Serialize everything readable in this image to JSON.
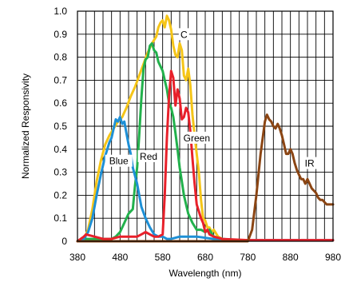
{
  "chart_data": {
    "type": "line",
    "title": "",
    "xlabel": "Wavelength (nm)",
    "ylabel": "Normalized Responsivity",
    "xlim": [
      380,
      980
    ],
    "ylim": [
      0,
      1.0
    ],
    "grid": true,
    "legend": "none",
    "xticks": [
      380,
      480,
      580,
      680,
      780,
      880,
      980
    ],
    "xtick_labels": [
      "380",
      "480",
      "580",
      "680",
      "780",
      "880",
      "980"
    ],
    "xgrid_step": 20,
    "yticks": [
      0,
      0.1,
      0.2,
      0.3,
      0.4,
      0.5,
      0.6,
      0.7,
      0.8,
      0.9,
      1.0
    ],
    "ytick_labels": [
      "0",
      "0.1",
      "0.2",
      "0.3",
      "0.4",
      "0.5",
      "0.6",
      "0.7",
      "0.8",
      "0.9",
      "1.0"
    ],
    "series": [
      {
        "name": "C",
        "color": "#f5c518",
        "x": [
          380,
          395,
          405,
          415,
          425,
          435,
          445,
          455,
          465,
          475,
          485,
          495,
          505,
          515,
          525,
          535,
          545,
          555,
          565,
          570,
          575,
          580,
          585,
          590,
          595,
          600,
          605,
          610,
          615,
          620,
          625,
          630,
          635,
          640,
          645,
          650,
          655,
          660,
          665,
          670,
          675,
          680,
          685,
          690,
          695,
          700,
          710,
          720,
          740,
          760,
          780,
          800,
          850,
          900,
          980
        ],
        "y": [
          0,
          0.01,
          0.05,
          0.14,
          0.26,
          0.35,
          0.42,
          0.46,
          0.49,
          0.52,
          0.54,
          0.58,
          0.63,
          0.67,
          0.72,
          0.77,
          0.82,
          0.86,
          0.89,
          0.93,
          0.95,
          0.96,
          0.93,
          0.98,
          0.96,
          0.92,
          0.85,
          0.81,
          0.8,
          0.86,
          0.83,
          0.72,
          0.7,
          0.75,
          0.68,
          0.55,
          0.46,
          0.38,
          0.3,
          0.18,
          0.1,
          0.09,
          0.06,
          0.06,
          0.04,
          0.05,
          0.02,
          0.01,
          0.005,
          0.005,
          0.005,
          0.005,
          0.005,
          0.005,
          0.005
        ]
      },
      {
        "name": "Green",
        "color": "#22b14c",
        "x": [
          380,
          400,
          420,
          440,
          460,
          470,
          480,
          490,
          500,
          510,
          515,
          520,
          525,
          530,
          535,
          540,
          545,
          550,
          555,
          560,
          565,
          570,
          575,
          580,
          585,
          590,
          595,
          600,
          605,
          610,
          615,
          620,
          625,
          630,
          640,
          650,
          660,
          670,
          680,
          690,
          700,
          720,
          740,
          780,
          850,
          900,
          980
        ],
        "y": [
          0,
          0.01,
          0.01,
          0.01,
          0.01,
          0.02,
          0.04,
          0.08,
          0.12,
          0.14,
          0.24,
          0.32,
          0.46,
          0.62,
          0.75,
          0.79,
          0.8,
          0.85,
          0.86,
          0.83,
          0.82,
          0.78,
          0.76,
          0.74,
          0.7,
          0.66,
          0.6,
          0.58,
          0.54,
          0.47,
          0.4,
          0.32,
          0.26,
          0.2,
          0.12,
          0.08,
          0.05,
          0.05,
          0.04,
          0.05,
          0.02,
          0.01,
          0.005,
          0.005,
          0.005,
          0.005,
          0.005
        ]
      },
      {
        "name": "Blue",
        "color": "#1e90d6",
        "x": [
          380,
          395,
          405,
          415,
          425,
          435,
          445,
          455,
          460,
          465,
          470,
          475,
          480,
          485,
          490,
          495,
          500,
          505,
          510,
          520,
          530,
          540,
          550,
          560,
          570,
          580,
          590,
          600,
          620,
          640,
          660,
          680,
          700,
          720,
          760,
          800,
          900,
          980
        ],
        "y": [
          0,
          0.01,
          0.04,
          0.1,
          0.2,
          0.29,
          0.37,
          0.43,
          0.45,
          0.49,
          0.53,
          0.52,
          0.54,
          0.51,
          0.52,
          0.47,
          0.42,
          0.38,
          0.32,
          0.25,
          0.15,
          0.1,
          0.06,
          0.03,
          0.02,
          0.02,
          0.01,
          0.01,
          0.02,
          0.02,
          0.02,
          0.015,
          0.01,
          0.01,
          0.005,
          0.005,
          0.005,
          0.005
        ]
      },
      {
        "name": "Red",
        "color": "#e8202a",
        "x": [
          380,
          395,
          400,
          420,
          440,
          460,
          480,
          500,
          520,
          530,
          540,
          550,
          560,
          570,
          580,
          585,
          590,
          595,
          600,
          605,
          610,
          615,
          620,
          625,
          630,
          635,
          640,
          645,
          650,
          655,
          660,
          665,
          670,
          675,
          680,
          685,
          690,
          700,
          720,
          780,
          850,
          900,
          980
        ],
        "y": [
          0,
          0.02,
          0.03,
          0.02,
          0.01,
          0.01,
          0.02,
          0.02,
          0.02,
          0.03,
          0.04,
          0.03,
          0.02,
          0.02,
          0.03,
          0.2,
          0.45,
          0.63,
          0.74,
          0.71,
          0.59,
          0.66,
          0.62,
          0.53,
          0.54,
          0.58,
          0.56,
          0.48,
          0.36,
          0.25,
          0.16,
          0.13,
          0.1,
          0.08,
          0.04,
          0.05,
          0.03,
          0.02,
          0.01,
          0.005,
          0.005,
          0.005,
          0.005
        ]
      },
      {
        "name": "IR",
        "color": "#8b4513",
        "x": [
          380,
          780,
          790,
          800,
          810,
          815,
          820,
          825,
          830,
          835,
          840,
          845,
          850,
          855,
          860,
          865,
          870,
          875,
          880,
          885,
          890,
          895,
          900,
          905,
          910,
          915,
          920,
          925,
          930,
          935,
          940,
          945,
          950,
          955,
          960,
          965,
          970,
          980
        ],
        "y": [
          0,
          0,
          0.05,
          0.2,
          0.38,
          0.45,
          0.52,
          0.55,
          0.53,
          0.52,
          0.5,
          0.49,
          0.51,
          0.49,
          0.46,
          0.42,
          0.38,
          0.38,
          0.4,
          0.38,
          0.34,
          0.31,
          0.29,
          0.27,
          0.27,
          0.25,
          0.27,
          0.25,
          0.23,
          0.22,
          0.21,
          0.19,
          0.18,
          0.18,
          0.17,
          0.16,
          0.16,
          0.16
        ]
      }
    ],
    "annotations": [
      {
        "text": "C",
        "x": 630,
        "y": 0.9
      },
      {
        "text": "Green",
        "x": 660,
        "y": 0.45
      },
      {
        "text": "Red",
        "x": 547,
        "y": 0.37
      },
      {
        "text": "Blue",
        "x": 477,
        "y": 0.35
      },
      {
        "text": "IR",
        "x": 925,
        "y": 0.34
      }
    ]
  }
}
